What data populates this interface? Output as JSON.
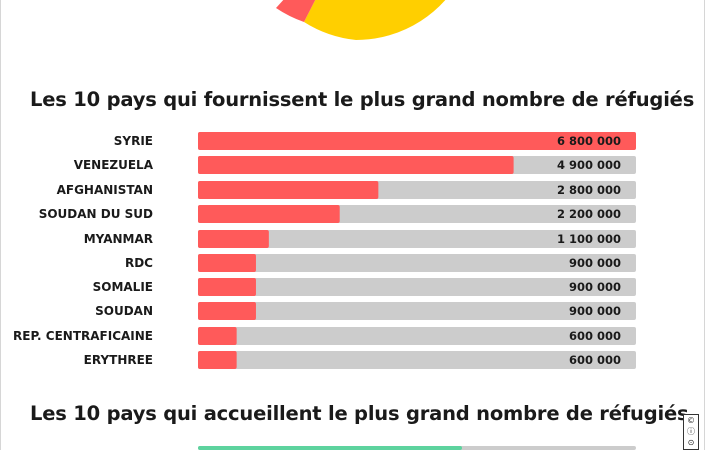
{
  "colors": {
    "bar_fill_top": "#ff5a5a",
    "bar_track": "#cccccc",
    "bar_fill_next": "#5dd39e",
    "pie_yellow": "#ffcf00",
    "pie_red": "#ff5a5a"
  },
  "sections": [
    {
      "title": "Les 10 pays qui fournissent le plus grand nombre de réfugiés"
    },
    {
      "title": "Les 10 pays qui accueillent le plus grand nombre de réfugiés"
    }
  ],
  "license_icon": "cc-by-sa-icon",
  "chart_data": [
    {
      "type": "bar",
      "orientation": "horizontal",
      "title": "Les 10 pays qui fournissent le plus grand nombre de réfugiés",
      "categories": [
        "SYRIE",
        "VENEZUELA",
        "AFGHANISTAN",
        "SOUDAN DU SUD",
        "MYANMAR",
        "RDC",
        "SOMALIE",
        "SOUDAN",
        "REP. CENTRAFICAINE",
        "ERYTHREE"
      ],
      "values": [
        6800000,
        4900000,
        2800000,
        2200000,
        1100000,
        900000,
        900000,
        900000,
        600000,
        600000
      ],
      "value_labels": [
        "6 800 000",
        "4 900 000",
        "2 800 000",
        "2 200 000",
        "1 100 000",
        "900 000",
        "900 000",
        "900 000",
        "600 000",
        "600 000"
      ],
      "xlim": [
        0,
        6800000
      ],
      "grid": false
    }
  ]
}
